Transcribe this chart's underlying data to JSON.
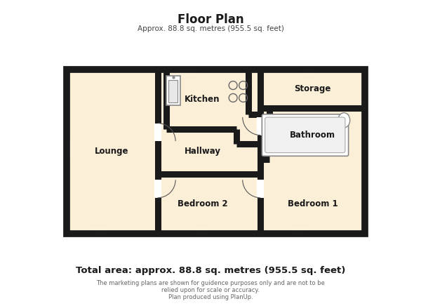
{
  "title": "Floor Plan",
  "subtitle": "Approx. 88.8 sq. metres (955.5 sq. feet)",
  "total_area": "Total area: approx. 88.8 sq. metres (955.5 sq. feet)",
  "disclaimer1": "The marketing plans are shown for guidence purposes only and are not to be",
  "disclaimer2": "relied upon for scale or accuracy.",
  "disclaimer3": "Plan produced using PlanUp.",
  "bg_color": "#ffffff",
  "wall_color": "#1a1a1a",
  "room_fill": "#fcefd8",
  "figsize": [
    6.0,
    4.36
  ],
  "dpi": 100
}
